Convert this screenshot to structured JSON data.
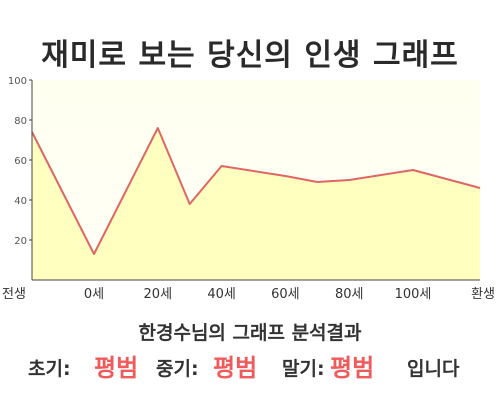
{
  "title": "재미로 보는 당신의 인생 그래프",
  "chart_data": {
    "type": "area",
    "x_categories": [
      "전생",
      "0세",
      "20세",
      "40세",
      "60세",
      "80세",
      "100세",
      "환생"
    ],
    "points": [
      {
        "x": "전생",
        "y": 74
      },
      {
        "x": "0세",
        "y": 13
      },
      {
        "x": "20세",
        "y": 76
      },
      {
        "x": "30세",
        "y": 38
      },
      {
        "x": "40세",
        "y": 57
      },
      {
        "x": "60세",
        "y": 52
      },
      {
        "x": "70세",
        "y": 49
      },
      {
        "x": "80세",
        "y": 50
      },
      {
        "x": "100세",
        "y": 55
      },
      {
        "x": "환생",
        "y": 46
      }
    ],
    "yticks": [
      20,
      40,
      60,
      80,
      100
    ],
    "ylim": [
      0,
      100
    ],
    "grid": false,
    "colors": {
      "line": "#e06666",
      "fill": "#ffffc8"
    }
  },
  "analysis_title": "한경수님의 그래프 분석결과",
  "results": {
    "early_label": "초기:",
    "early_value": "평범",
    "mid_label": "중기:",
    "mid_value": "평범",
    "late_label": "말기:",
    "late_value": "평범",
    "ending": "입니다"
  }
}
